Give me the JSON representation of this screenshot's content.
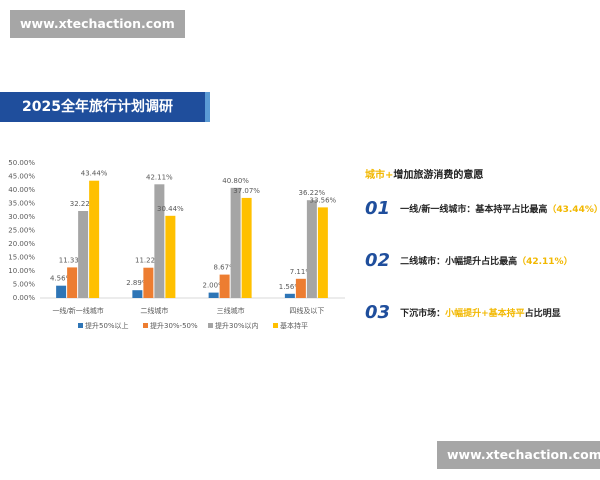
{
  "watermarks": [
    "www.xtechaction.com",
    "www.xtechaction.com"
  ],
  "header": {
    "title": "2025全年旅行计划调研"
  },
  "chart_data": {
    "type": "bar",
    "categories": [
      "一线/新一线城市",
      "二线城市",
      "三线城市",
      "四线及以下"
    ],
    "series": [
      {
        "name": "提升50%以上",
        "color": "#2e75b6",
        "values": [
          4.56,
          2.89,
          2,
          1.56
        ],
        "value_labels": [
          "4.56%",
          "2.89%",
          "2.00%",
          "1.56%"
        ]
      },
      {
        "name": "提升30%-50%",
        "color": "#ed7d31",
        "values": [
          11.33,
          11.22,
          8.67,
          7.11
        ],
        "value_labels": [
          "11.33%",
          "11.22%",
          "8.67%",
          "7.11%"
        ]
      },
      {
        "name": "提升30%以内",
        "color": "#a5a5a5",
        "values": [
          32.22,
          42.11,
          40.8,
          36.22
        ],
        "value_labels": [
          "32.22%",
          "42.11%",
          "40.80%",
          "36.22%"
        ]
      },
      {
        "name": "基本持平",
        "color": "#ffc000",
        "values": [
          43.44,
          30.44,
          37.07,
          33.56
        ],
        "value_labels": [
          "43.44%",
          "30.44%",
          "37.07%",
          "33.56%"
        ]
      }
    ],
    "ylim": [
      0,
      50
    ],
    "yticks": [
      {
        "value": 0,
        "label": "0.00%"
      },
      {
        "value": 5,
        "label": "5.00%"
      },
      {
        "value": 10,
        "label": "10.00%"
      },
      {
        "value": 15,
        "label": "15.00%"
      },
      {
        "value": 20,
        "label": "20.00%"
      },
      {
        "value": 25,
        "label": "25.00%"
      },
      {
        "value": 30,
        "label": "30.00%"
      },
      {
        "value": 35,
        "label": "35.00%"
      },
      {
        "value": 40,
        "label": "40.00%"
      },
      {
        "value": 45,
        "label": "45.00%"
      },
      {
        "value": 50,
        "label": "50.00%"
      }
    ],
    "legend": "bottom"
  },
  "summary": {
    "heading": [
      "城市+",
      "增加旅游消费的意愿"
    ],
    "items": [
      {
        "number": "01",
        "parts": [
          "一线/新一线城市：基本持平占比最高",
          "（43.44%）"
        ]
      },
      {
        "number": "02",
        "parts": [
          "二线城市：小幅提升占比最高",
          "（42.11%）"
        ]
      },
      {
        "number": "03",
        "parts": [
          "下沉市场：",
          "小幅提升+基本持平",
          "占比明显"
        ]
      }
    ]
  }
}
